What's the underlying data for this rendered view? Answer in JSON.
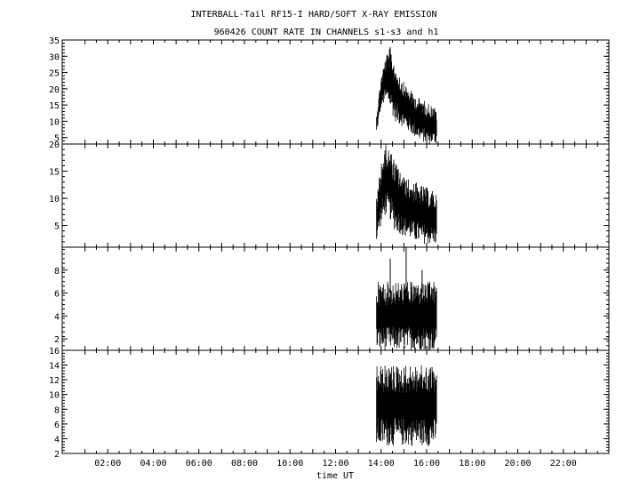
{
  "title": "INTERBALL-Tail RF15-I HARD/SOFT X-RAY EMISSION",
  "subtitle": "960426  COUNT RATE IN CHANNELS s1-s3 and h1",
  "chart_data": {
    "type": "line",
    "title": "INTERBALL-Tail RF15-I HARD/SOFT X-RAY EMISSION",
    "subtitle": "960426  COUNT RATE IN CHANNELS s1-s3 and h1",
    "xlabel": "time UT",
    "xlim": [
      0,
      24
    ],
    "x_ticks": [
      "02:00",
      "04:00",
      "06:00",
      "08:00",
      "10:00",
      "12:00",
      "14:00",
      "16:00",
      "18:00",
      "20:00",
      "22:00"
    ],
    "data_window_hours": [
      13.8,
      16.45
    ],
    "grid": false,
    "panels": [
      {
        "ylim": [
          3,
          35
        ],
        "yticks": [
          "5",
          "10",
          "15",
          "20",
          "25",
          "30",
          "35"
        ],
        "envelope": {
          "x": [
            13.8,
            14.0,
            14.2,
            14.4,
            14.6,
            15.0,
            15.5,
            16.0,
            16.45
          ],
          "y_high": [
            12,
            24,
            30,
            33,
            28,
            22,
            18,
            16,
            14
          ],
          "y_low": [
            6,
            14,
            16,
            14,
            10,
            8,
            5,
            3,
            3
          ]
        }
      },
      {
        "ylim": [
          1,
          20
        ],
        "yticks": [
          "5",
          "10",
          "15",
          "20"
        ],
        "envelope": {
          "x": [
            13.8,
            14.0,
            14.2,
            14.4,
            14.6,
            15.0,
            15.5,
            16.0,
            16.45
          ],
          "y_high": [
            10,
            17,
            20,
            19,
            17,
            14,
            13,
            12,
            11
          ],
          "y_low": [
            2,
            5,
            7,
            6,
            4,
            3,
            2,
            1.5,
            1.5
          ]
        }
      },
      {
        "ylim": [
          1,
          10
        ],
        "yticks": [
          "2",
          "4",
          "6",
          "8"
        ],
        "envelope": {
          "x": [
            13.8,
            14.5,
            15.0,
            15.5,
            16.0,
            16.45
          ],
          "y_high": [
            7,
            7,
            7,
            7,
            7,
            7
          ],
          "y_low": [
            1,
            1,
            1,
            1,
            1,
            1
          ]
        },
        "spikes": [
          9,
          10,
          8
        ]
      },
      {
        "ylim": [
          2,
          16
        ],
        "yticks": [
          "2",
          "4",
          "6",
          "8",
          "10",
          "12",
          "14",
          "16"
        ],
        "envelope": {
          "x": [
            13.8,
            14.5,
            15.0,
            15.5,
            16.0,
            16.45
          ],
          "y_high": [
            14,
            14,
            14,
            14,
            14,
            14
          ],
          "y_low": [
            3,
            3,
            3,
            3,
            3,
            3
          ]
        }
      }
    ]
  }
}
